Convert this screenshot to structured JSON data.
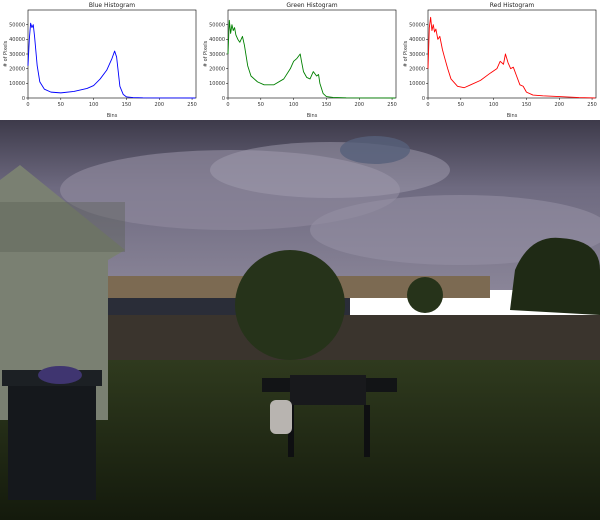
{
  "chart_data": [
    {
      "type": "line",
      "title": "Blue Histogram",
      "xlabel": "Bins",
      "ylabel": "# of Pixels",
      "xlim": [
        0,
        256
      ],
      "ylim": [
        0,
        60000
      ],
      "xticks": [
        "0",
        "50",
        "100",
        "150",
        "200",
        "250"
      ],
      "yticks": [
        "0",
        "10000",
        "20000",
        "30000",
        "40000",
        "50000"
      ],
      "series": [
        {
          "color": "#0000ff",
          "x": [
            0,
            2,
            4,
            6,
            8,
            10,
            14,
            18,
            25,
            35,
            50,
            70,
            90,
            100,
            110,
            120,
            128,
            132,
            135,
            137,
            140,
            145,
            150,
            160,
            175,
            200,
            230,
            255
          ],
          "y": [
            22000,
            40000,
            51000,
            48000,
            50000,
            42000,
            22000,
            11000,
            6000,
            4000,
            3500,
            4500,
            6500,
            8500,
            13000,
            19000,
            27000,
            32000,
            28000,
            20000,
            8000,
            2500,
            800,
            300,
            100,
            50,
            20,
            10
          ]
        }
      ]
    },
    {
      "type": "line",
      "title": "Green Histogram",
      "xlabel": "Bins",
      "ylabel": "# of Pixels",
      "xlim": [
        0,
        256
      ],
      "ylim": [
        0,
        60000
      ],
      "xticks": [
        "0",
        "50",
        "100",
        "150",
        "200",
        "250"
      ],
      "yticks": [
        "0",
        "10000",
        "20000",
        "30000",
        "40000",
        "50000"
      ],
      "series": [
        {
          "color": "#008000",
          "x": [
            0,
            2,
            4,
            6,
            8,
            10,
            12,
            15,
            18,
            22,
            25,
            30,
            35,
            45,
            55,
            70,
            85,
            95,
            100,
            105,
            110,
            112,
            115,
            120,
            125,
            130,
            135,
            138,
            140,
            145,
            150,
            160,
            180,
            210,
            255
          ],
          "y": [
            30000,
            53000,
            44000,
            50000,
            46000,
            48000,
            43000,
            40000,
            38000,
            42000,
            36000,
            22000,
            15000,
            11000,
            9000,
            9000,
            13000,
            20000,
            25000,
            27000,
            30000,
            25000,
            18000,
            14000,
            13000,
            18000,
            15000,
            16000,
            10000,
            3000,
            1000,
            400,
            100,
            30,
            10
          ]
        }
      ]
    },
    {
      "type": "line",
      "title": "Red Histogram",
      "xlabel": "Bins",
      "ylabel": "# of Pixels",
      "xlim": [
        0,
        256
      ],
      "ylim": [
        0,
        60000
      ],
      "xticks": [
        "0",
        "50",
        "100",
        "150",
        "200",
        "250"
      ],
      "yticks": [
        "0",
        "10000",
        "20000",
        "30000",
        "40000",
        "50000"
      ],
      "series": [
        {
          "color": "#ff0000",
          "x": [
            0,
            2,
            4,
            6,
            8,
            10,
            12,
            15,
            18,
            22,
            25,
            30,
            35,
            45,
            55,
            65,
            80,
            95,
            105,
            110,
            115,
            118,
            122,
            126,
            130,
            135,
            140,
            145,
            150,
            160,
            175,
            200,
            230,
            255
          ],
          "y": [
            20000,
            48000,
            55000,
            46000,
            50000,
            45000,
            47000,
            40000,
            42000,
            33000,
            28000,
            20000,
            13000,
            8000,
            7000,
            9000,
            12000,
            17000,
            20000,
            25000,
            23000,
            30000,
            24000,
            20000,
            21000,
            15000,
            9000,
            8000,
            4000,
            2000,
            1500,
            1000,
            300,
            50
          ]
        }
      ]
    }
  ]
}
